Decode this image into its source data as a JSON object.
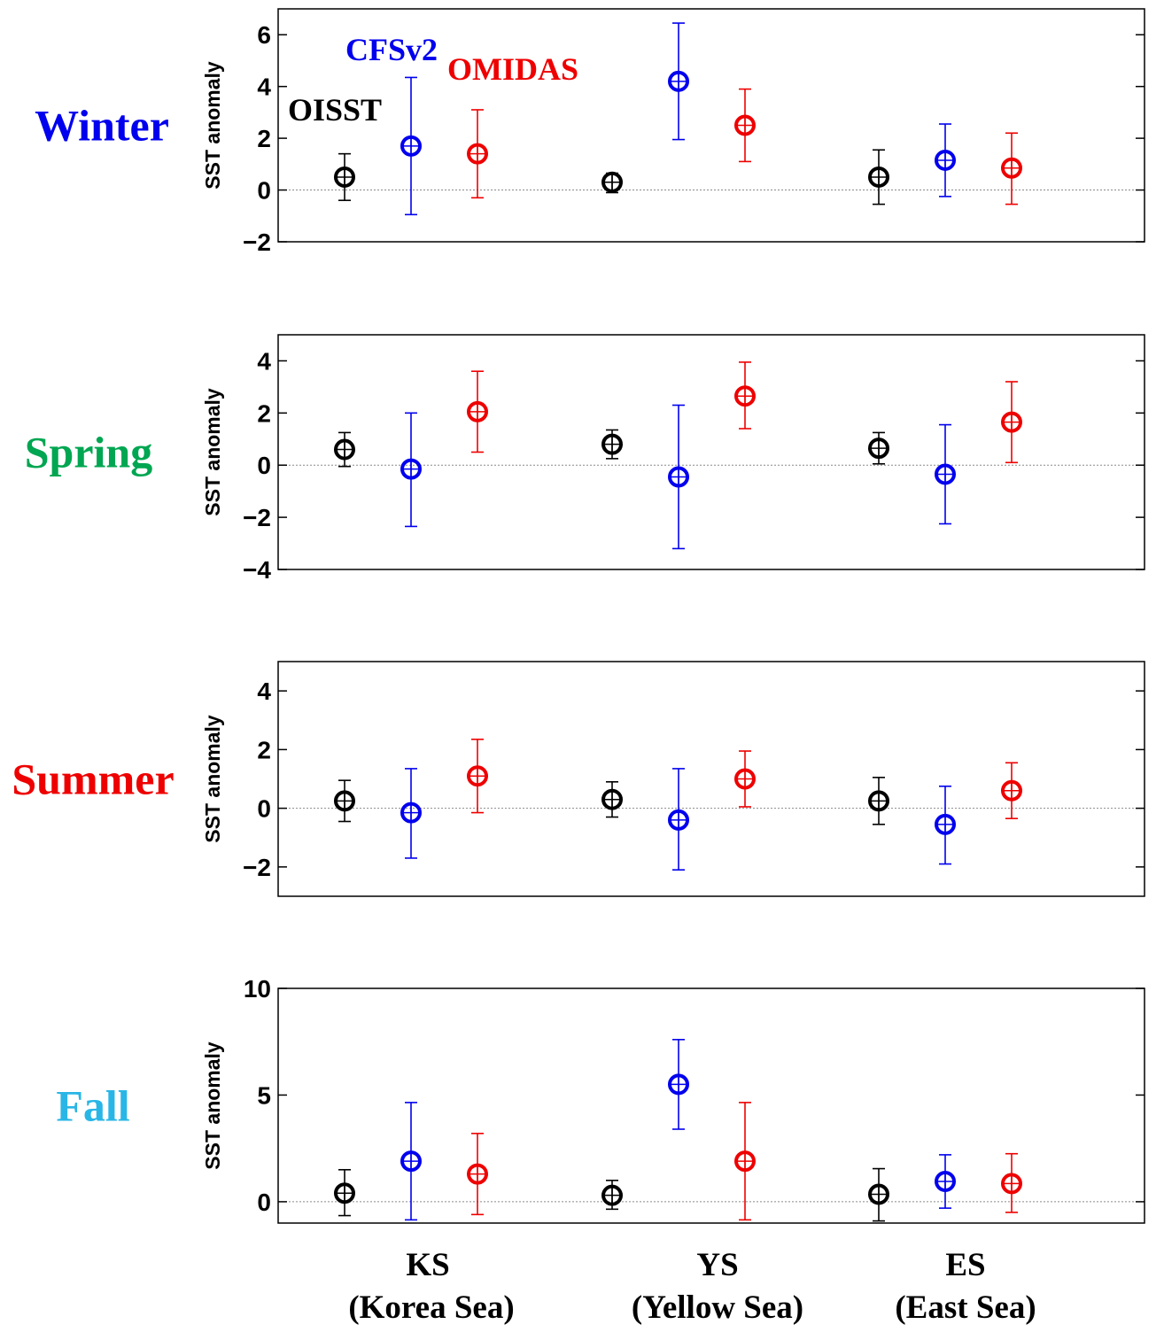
{
  "chart_data": {
    "type": "scatter",
    "layout": "four panels stacked vertically with error bars",
    "categories": [
      "KS",
      "YS",
      "ES"
    ],
    "category_sublabels": [
      "(Korea Sea)",
      "(Yellow Sea)",
      "(East Sea)"
    ],
    "series_colors": {
      "OISST": "#000000",
      "CFSv2": "#0000ee",
      "OMIDAS": "#ee0000"
    },
    "legend": [
      {
        "name": "OISST",
        "color": "#000000"
      },
      {
        "name": "CFSv2",
        "color": "#0000ee"
      },
      {
        "name": "OMIDAS",
        "color": "#ee0000"
      }
    ],
    "legend_placement": "inside top-left of first panel",
    "panels": [
      {
        "season": "Winter",
        "season_color": "#0000ee",
        "ylabel": "SST anomaly",
        "ylim": [
          -2,
          7
        ],
        "yticks": [
          -2,
          0,
          2,
          4,
          6
        ],
        "zero_line": true,
        "series": [
          {
            "name": "OISST",
            "values": [
              0.5,
              0.3,
              0.5
            ],
            "lower": [
              -0.4,
              -0.1,
              -0.55
            ],
            "upper": [
              1.4,
              0.65,
              1.55
            ]
          },
          {
            "name": "CFSv2",
            "values": [
              1.7,
              4.2,
              1.15
            ],
            "lower": [
              -0.95,
              1.95,
              -0.25
            ],
            "upper": [
              4.35,
              6.45,
              2.55
            ]
          },
          {
            "name": "OMIDAS",
            "values": [
              1.4,
              2.5,
              0.85
            ],
            "lower": [
              -0.3,
              1.1,
              -0.55
            ],
            "upper": [
              3.1,
              3.9,
              2.2
            ]
          }
        ]
      },
      {
        "season": "Spring",
        "season_color": "#00a651",
        "ylabel": "SST anomaly",
        "ylim": [
          -4,
          5
        ],
        "yticks": [
          -4,
          -2,
          0,
          2,
          4
        ],
        "zero_line": true,
        "series": [
          {
            "name": "OISST",
            "values": [
              0.6,
              0.8,
              0.65
            ],
            "lower": [
              -0.05,
              0.25,
              0.05
            ],
            "upper": [
              1.25,
              1.35,
              1.25
            ]
          },
          {
            "name": "CFSv2",
            "values": [
              -0.15,
              -0.45,
              -0.35
            ],
            "lower": [
              -2.35,
              -3.2,
              -2.25
            ],
            "upper": [
              2.0,
              2.3,
              1.55
            ]
          },
          {
            "name": "OMIDAS",
            "values": [
              2.05,
              2.65,
              1.65
            ],
            "lower": [
              0.5,
              1.4,
              0.1
            ],
            "upper": [
              3.6,
              3.95,
              3.2
            ]
          }
        ]
      },
      {
        "season": "Summer",
        "season_color": "#ee0000",
        "ylabel": "SST anomaly",
        "ylim": [
          -3,
          5
        ],
        "yticks": [
          -2,
          0,
          2,
          4
        ],
        "zero_line": true,
        "series": [
          {
            "name": "OISST",
            "values": [
              0.25,
              0.3,
              0.25
            ],
            "lower": [
              -0.45,
              -0.3,
              -0.55
            ],
            "upper": [
              0.95,
              0.9,
              1.05
            ]
          },
          {
            "name": "CFSv2",
            "values": [
              -0.15,
              -0.4,
              -0.55
            ],
            "lower": [
              -1.7,
              -2.1,
              -1.9
            ],
            "upper": [
              1.35,
              1.35,
              0.75
            ]
          },
          {
            "name": "OMIDAS",
            "values": [
              1.1,
              1.0,
              0.6
            ],
            "lower": [
              -0.15,
              0.05,
              -0.35
            ],
            "upper": [
              2.35,
              1.95,
              1.55
            ]
          }
        ]
      },
      {
        "season": "Fall",
        "season_color": "#29b6e6",
        "ylabel": "SST anomaly",
        "ylim": [
          -1,
          10
        ],
        "yticks": [
          0,
          5,
          10
        ],
        "zero_line": true,
        "series": [
          {
            "name": "OISST",
            "values": [
              0.4,
              0.3,
              0.35
            ],
            "lower": [
              -0.65,
              -0.35,
              -0.9
            ],
            "upper": [
              1.5,
              1.0,
              1.55
            ]
          },
          {
            "name": "CFSv2",
            "values": [
              1.9,
              5.5,
              0.95
            ],
            "lower": [
              -0.85,
              3.4,
              -0.3
            ],
            "upper": [
              4.65,
              7.6,
              2.2
            ]
          },
          {
            "name": "OMIDAS",
            "values": [
              1.3,
              1.9,
              0.85
            ],
            "lower": [
              -0.6,
              -0.85,
              -0.5
            ],
            "upper": [
              3.2,
              4.65,
              2.25
            ]
          }
        ]
      }
    ]
  }
}
